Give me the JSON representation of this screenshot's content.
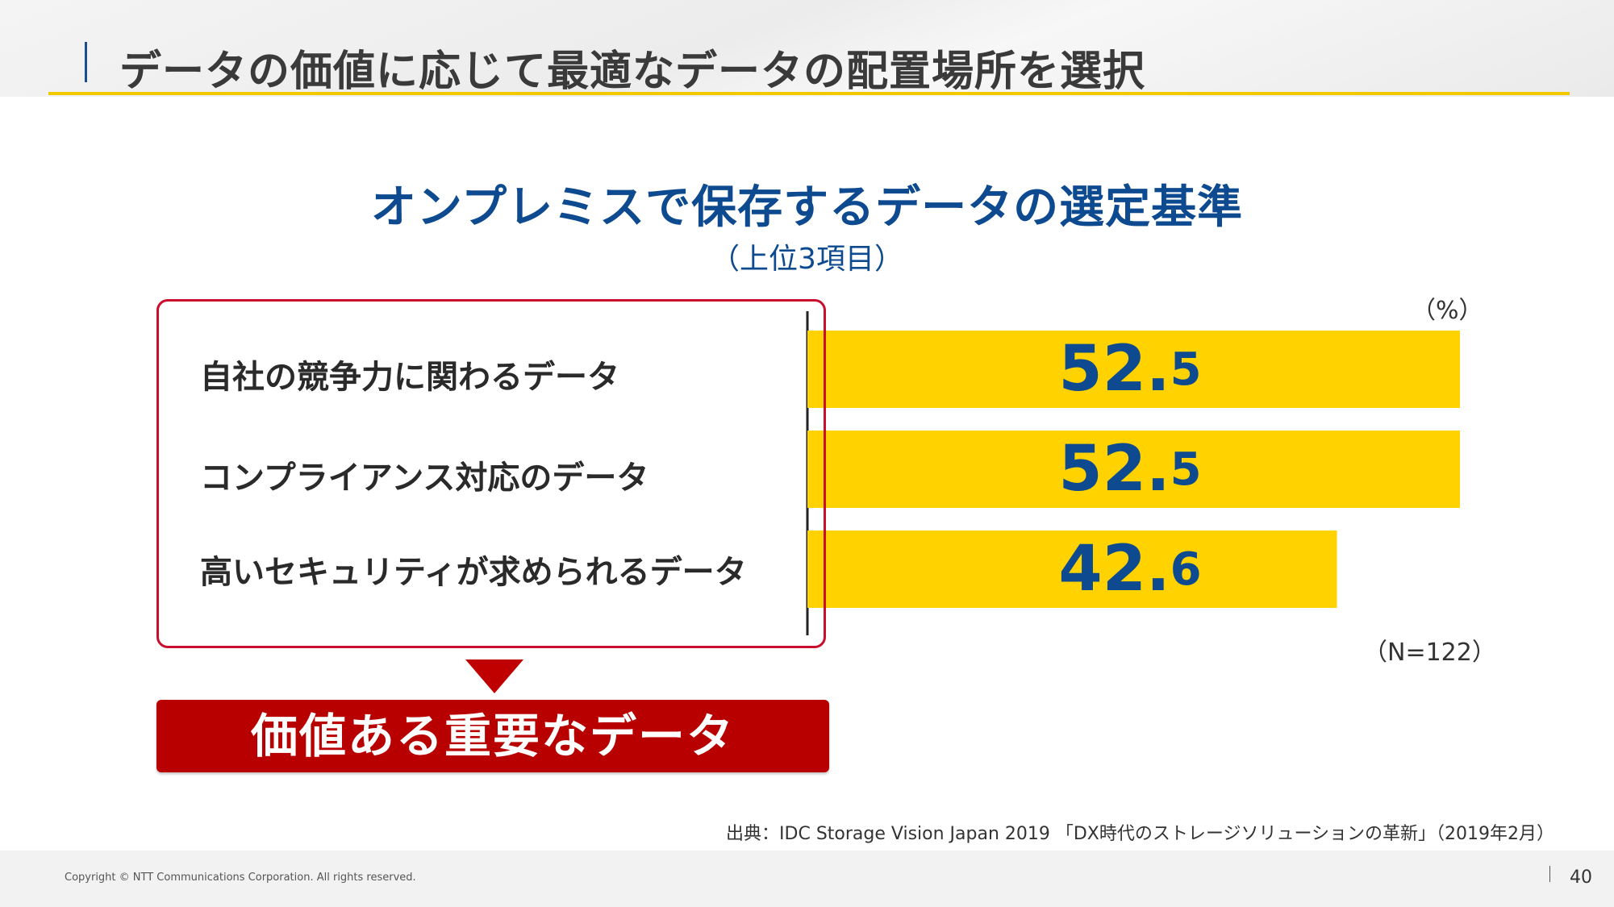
{
  "header": {
    "title": "データの価値に応じて最適なデータの配置場所を選択"
  },
  "chart_data": {
    "type": "bar",
    "orientation": "horizontal",
    "title": "オンプレミスで保存するデータの選定基準",
    "subtitle": "（上位3項目）",
    "unit_label": "（%）",
    "sample_label": "（N=122）",
    "xlim": [
      0,
      52.5
    ],
    "grid": false,
    "categories": [
      "自社の競争力に関わるデータ",
      "コンプライアンス対応のデータ",
      "高いセキュリティが求められるデータ"
    ],
    "values": [
      52.5,
      52.5,
      42.6
    ],
    "value_labels": [
      {
        "int": "52.",
        "dec": "5"
      },
      {
        "int": "52.",
        "dec": "5"
      },
      {
        "int": "42.",
        "dec": "6"
      }
    ],
    "bar_color": "#FFD200",
    "value_color": "#0D4A8F"
  },
  "callout": {
    "text": "価値ある重要なデータ",
    "color": "#B80000"
  },
  "source": "出典：IDC Storage Vision Japan 2019 「DX時代のストレージソリューションの革新」（2019年2月）",
  "footer": {
    "copyright": "Copyright © NTT Communications Corporation. All rights reserved.",
    "page_number": "40"
  }
}
